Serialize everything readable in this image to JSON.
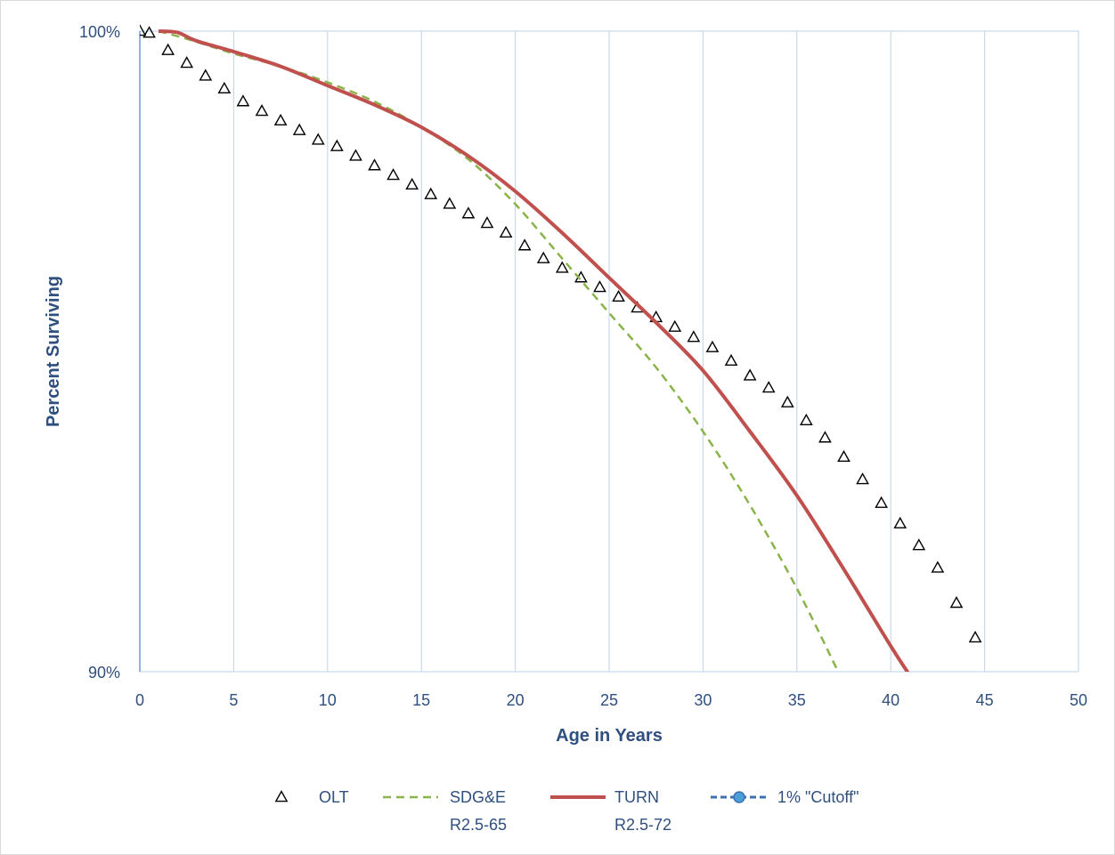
{
  "chart_data": {
    "type": "line",
    "xlabel": "Age in Years",
    "ylabel": "Percent Surviving",
    "xlim": [
      0,
      50
    ],
    "ylim": [
      90,
      100
    ],
    "x_ticks": [
      "0",
      "5",
      "10",
      "15",
      "20",
      "25",
      "30",
      "35",
      "40",
      "45",
      "50"
    ],
    "y_ticks": [
      {
        "value": 100,
        "label": "100%"
      },
      {
        "value": 90,
        "label": "90%"
      }
    ],
    "grid": "vertical",
    "legend_position": "bottom",
    "series": [
      {
        "name": "OLT",
        "style": "triangle-markers",
        "color": "#000000",
        "points": [
          [
            0,
            100
          ],
          [
            0.5,
            99.97
          ],
          [
            1.5,
            99.7
          ],
          [
            2.5,
            99.5
          ],
          [
            3.5,
            99.3
          ],
          [
            4.5,
            99.1
          ],
          [
            5.5,
            98.9
          ],
          [
            6.5,
            98.75
          ],
          [
            7.5,
            98.6
          ],
          [
            8.5,
            98.45
          ],
          [
            9.5,
            98.3
          ],
          [
            10.5,
            98.2
          ],
          [
            11.5,
            98.05
          ],
          [
            12.5,
            97.9
          ],
          [
            13.5,
            97.75
          ],
          [
            14.5,
            97.6
          ],
          [
            15.5,
            97.45
          ],
          [
            16.5,
            97.3
          ],
          [
            17.5,
            97.15
          ],
          [
            18.5,
            97.0
          ],
          [
            19.5,
            96.85
          ],
          [
            20.5,
            96.65
          ],
          [
            21.5,
            96.45
          ],
          [
            22.5,
            96.3
          ],
          [
            23.5,
            96.15
          ],
          [
            24.5,
            96.0
          ],
          [
            25.5,
            95.85
          ],
          [
            26.5,
            95.68
          ],
          [
            27.5,
            95.53
          ],
          [
            28.5,
            95.38
          ],
          [
            29.5,
            95.22
          ],
          [
            30.5,
            95.06
          ],
          [
            31.5,
            94.85
          ],
          [
            32.5,
            94.62
          ],
          [
            33.5,
            94.43
          ],
          [
            34.5,
            94.2
          ],
          [
            35.5,
            93.92
          ],
          [
            36.5,
            93.65
          ],
          [
            37.5,
            93.35
          ],
          [
            38.5,
            93.0
          ],
          [
            39.5,
            92.63
          ],
          [
            40.5,
            92.31
          ],
          [
            41.5,
            91.97
          ],
          [
            42.5,
            91.62
          ],
          [
            43.5,
            91.07
          ],
          [
            44.5,
            90.53
          ]
        ]
      },
      {
        "name": "SDG&E",
        "name_line2": "R2.5-65",
        "style": "dashed",
        "color": "#8ab34a",
        "points": [
          [
            1,
            100
          ],
          [
            2.5,
            99.88
          ],
          [
            5,
            99.65
          ],
          [
            7.5,
            99.45
          ],
          [
            10,
            99.2
          ],
          [
            12.5,
            98.9
          ],
          [
            15,
            98.5
          ],
          [
            17.5,
            98.0
          ],
          [
            20,
            97.3
          ],
          [
            22.5,
            96.45
          ],
          [
            25,
            95.6
          ],
          [
            27.5,
            94.75
          ],
          [
            30,
            93.75
          ],
          [
            32.5,
            92.6
          ],
          [
            35,
            91.3
          ],
          [
            37.2,
            90.0
          ]
        ]
      },
      {
        "name": "TURN",
        "name_line2": "R2.5-72",
        "style": "solid",
        "color": "#c0504d",
        "points": [
          [
            1,
            100
          ],
          [
            2,
            99.98
          ],
          [
            3,
            99.85
          ],
          [
            5,
            99.68
          ],
          [
            7.5,
            99.45
          ],
          [
            10,
            99.15
          ],
          [
            12.5,
            98.85
          ],
          [
            15,
            98.5
          ],
          [
            17.5,
            98.05
          ],
          [
            20,
            97.5
          ],
          [
            22.5,
            96.85
          ],
          [
            25,
            96.15
          ],
          [
            27.5,
            95.45
          ],
          [
            30,
            94.7
          ],
          [
            32.5,
            93.75
          ],
          [
            35,
            92.75
          ],
          [
            37.5,
            91.6
          ],
          [
            40,
            90.4
          ],
          [
            41,
            89.95
          ]
        ]
      },
      {
        "name": "1% \"Cutoff\"",
        "style": "dashed-with-circle-marker",
        "color": "#3e6fb0",
        "points": []
      }
    ]
  }
}
